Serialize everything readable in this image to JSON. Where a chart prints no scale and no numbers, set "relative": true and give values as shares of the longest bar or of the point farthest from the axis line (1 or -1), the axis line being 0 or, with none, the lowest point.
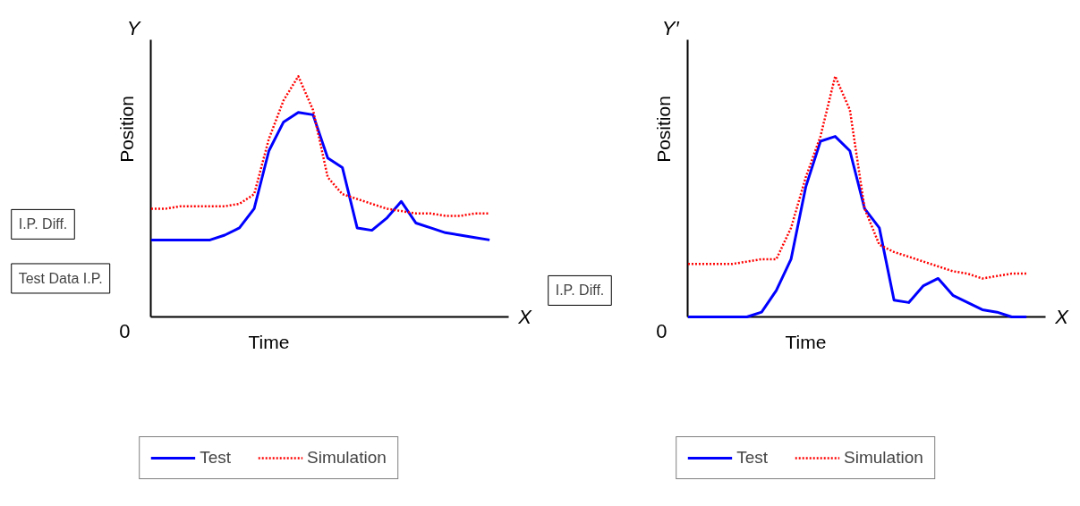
{
  "chart_data": [
    {
      "type": "line",
      "relative": true,
      "xlabel": "Time",
      "ylabel": "Position",
      "legend": "bottom",
      "annotations": [
        "Y",
        "X",
        "0",
        "I.P. Diff.",
        "Test Data I.P."
      ],
      "categories": [
        null,
        null,
        null,
        null,
        null,
        null,
        null,
        null,
        null,
        null,
        null,
        null,
        null,
        null,
        null,
        null,
        null,
        null,
        null,
        null,
        null,
        null,
        null,
        null
      ],
      "series": [
        {
          "name": "Test",
          "color": "#0000ff",
          "line_style": "solid",
          "values": [
            0.32,
            0.32,
            0.32,
            0.32,
            0.32,
            0.34,
            0.37,
            0.45,
            0.69,
            0.81,
            0.85,
            0.84,
            0.66,
            0.62,
            0.37,
            0.36,
            0.41,
            0.48,
            0.39,
            0.37,
            0.35,
            0.34,
            0.33,
            0.32
          ]
        },
        {
          "name": "Simulation",
          "color": "#ff0000",
          "line_style": "dotted",
          "values": [
            0.45,
            0.45,
            0.46,
            0.46,
            0.46,
            0.46,
            0.47,
            0.51,
            0.74,
            0.9,
            1.0,
            0.86,
            0.58,
            0.51,
            0.49,
            0.47,
            0.45,
            0.44,
            0.43,
            0.43,
            0.42,
            0.42,
            0.43,
            0.43
          ]
        }
      ]
    },
    {
      "type": "line",
      "relative": true,
      "xlabel": "Time",
      "ylabel": "Position",
      "legend": "bottom",
      "annotations": [
        "Y′",
        "X",
        "0",
        "I.P. Diff."
      ],
      "categories": [
        null,
        null,
        null,
        null,
        null,
        null,
        null,
        null,
        null,
        null,
        null,
        null,
        null,
        null,
        null,
        null,
        null,
        null,
        null,
        null,
        null,
        null,
        null,
        null
      ],
      "series": [
        {
          "name": "Test",
          "color": "#0000ff",
          "line_style": "solid",
          "values": [
            0,
            0,
            0,
            0,
            0,
            0.02,
            0.11,
            0.24,
            0.54,
            0.73,
            0.75,
            0.69,
            0.45,
            0.37,
            0.07,
            0.06,
            0.13,
            0.16,
            0.09,
            0.06,
            0.03,
            0.02,
            0,
            0
          ]
        },
        {
          "name": "Simulation",
          "color": "#ff0000",
          "line_style": "dotted",
          "values": [
            0.22,
            0.22,
            0.22,
            0.22,
            0.23,
            0.24,
            0.24,
            0.37,
            0.58,
            0.75,
            1.0,
            0.86,
            0.45,
            0.3,
            0.27,
            0.25,
            0.23,
            0.21,
            0.19,
            0.18,
            0.16,
            0.17,
            0.18,
            0.18
          ]
        }
      ]
    }
  ]
}
